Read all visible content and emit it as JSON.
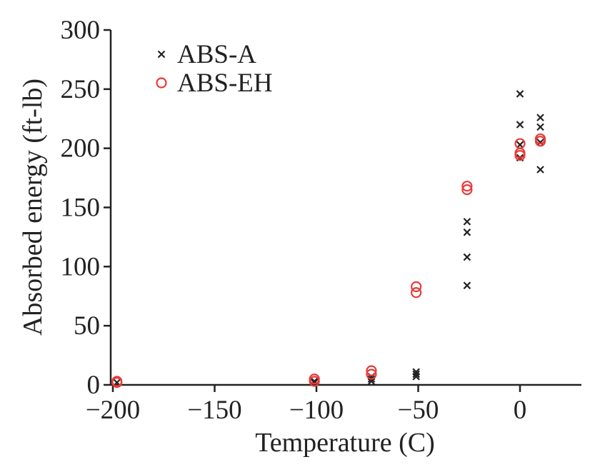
{
  "chart_data": {
    "type": "scatter",
    "xlabel": "Temperature (C)",
    "ylabel": "Absorbed energy (ft-lb)",
    "xlim": [
      -200,
      15
    ],
    "ylim": [
      0,
      300
    ],
    "x_ticks": [
      -200,
      -150,
      -100,
      -50,
      0
    ],
    "y_ticks": [
      0,
      50,
      100,
      150,
      200,
      250,
      300
    ],
    "x_tick_labels": [
      "−200",
      "−150",
      "−100",
      "−50",
      "0"
    ],
    "y_tick_labels": [
      "0",
      "50",
      "100",
      "150",
      "200",
      "250",
      "300"
    ],
    "grid": false,
    "legend_position": "top-left",
    "series": [
      {
        "name": "ABS-A",
        "marker": "x",
        "color": "#222222",
        "points": [
          {
            "x": -198,
            "y": 2
          },
          {
            "x": -101,
            "y": 2
          },
          {
            "x": -101,
            "y": 3
          },
          {
            "x": -73,
            "y": 3
          },
          {
            "x": -73,
            "y": 5
          },
          {
            "x": -73,
            "y": 7
          },
          {
            "x": -51,
            "y": 7
          },
          {
            "x": -51,
            "y": 9
          },
          {
            "x": -51,
            "y": 11
          },
          {
            "x": -26,
            "y": 84
          },
          {
            "x": -26,
            "y": 108
          },
          {
            "x": -26,
            "y": 129
          },
          {
            "x": -26,
            "y": 138
          },
          {
            "x": 0,
            "y": 192
          },
          {
            "x": 0,
            "y": 203
          },
          {
            "x": 0,
            "y": 220
          },
          {
            "x": 0,
            "y": 246
          },
          {
            "x": 10,
            "y": 182
          },
          {
            "x": 10,
            "y": 205
          },
          {
            "x": 10,
            "y": 218
          },
          {
            "x": 10,
            "y": 226
          }
        ]
      },
      {
        "name": "ABS-EH",
        "marker": "circle",
        "color": "#e83a3a",
        "points": [
          {
            "x": -198,
            "y": 2
          },
          {
            "x": -198,
            "y": 3
          },
          {
            "x": -101,
            "y": 3
          },
          {
            "x": -101,
            "y": 5
          },
          {
            "x": -73,
            "y": 9
          },
          {
            "x": -73,
            "y": 12
          },
          {
            "x": -51,
            "y": 78
          },
          {
            "x": -51,
            "y": 83
          },
          {
            "x": -26,
            "y": 165
          },
          {
            "x": -26,
            "y": 168
          },
          {
            "x": 0,
            "y": 194
          },
          {
            "x": 0,
            "y": 196
          },
          {
            "x": 0,
            "y": 204
          },
          {
            "x": 10,
            "y": 206
          },
          {
            "x": 10,
            "y": 208
          }
        ]
      }
    ]
  }
}
